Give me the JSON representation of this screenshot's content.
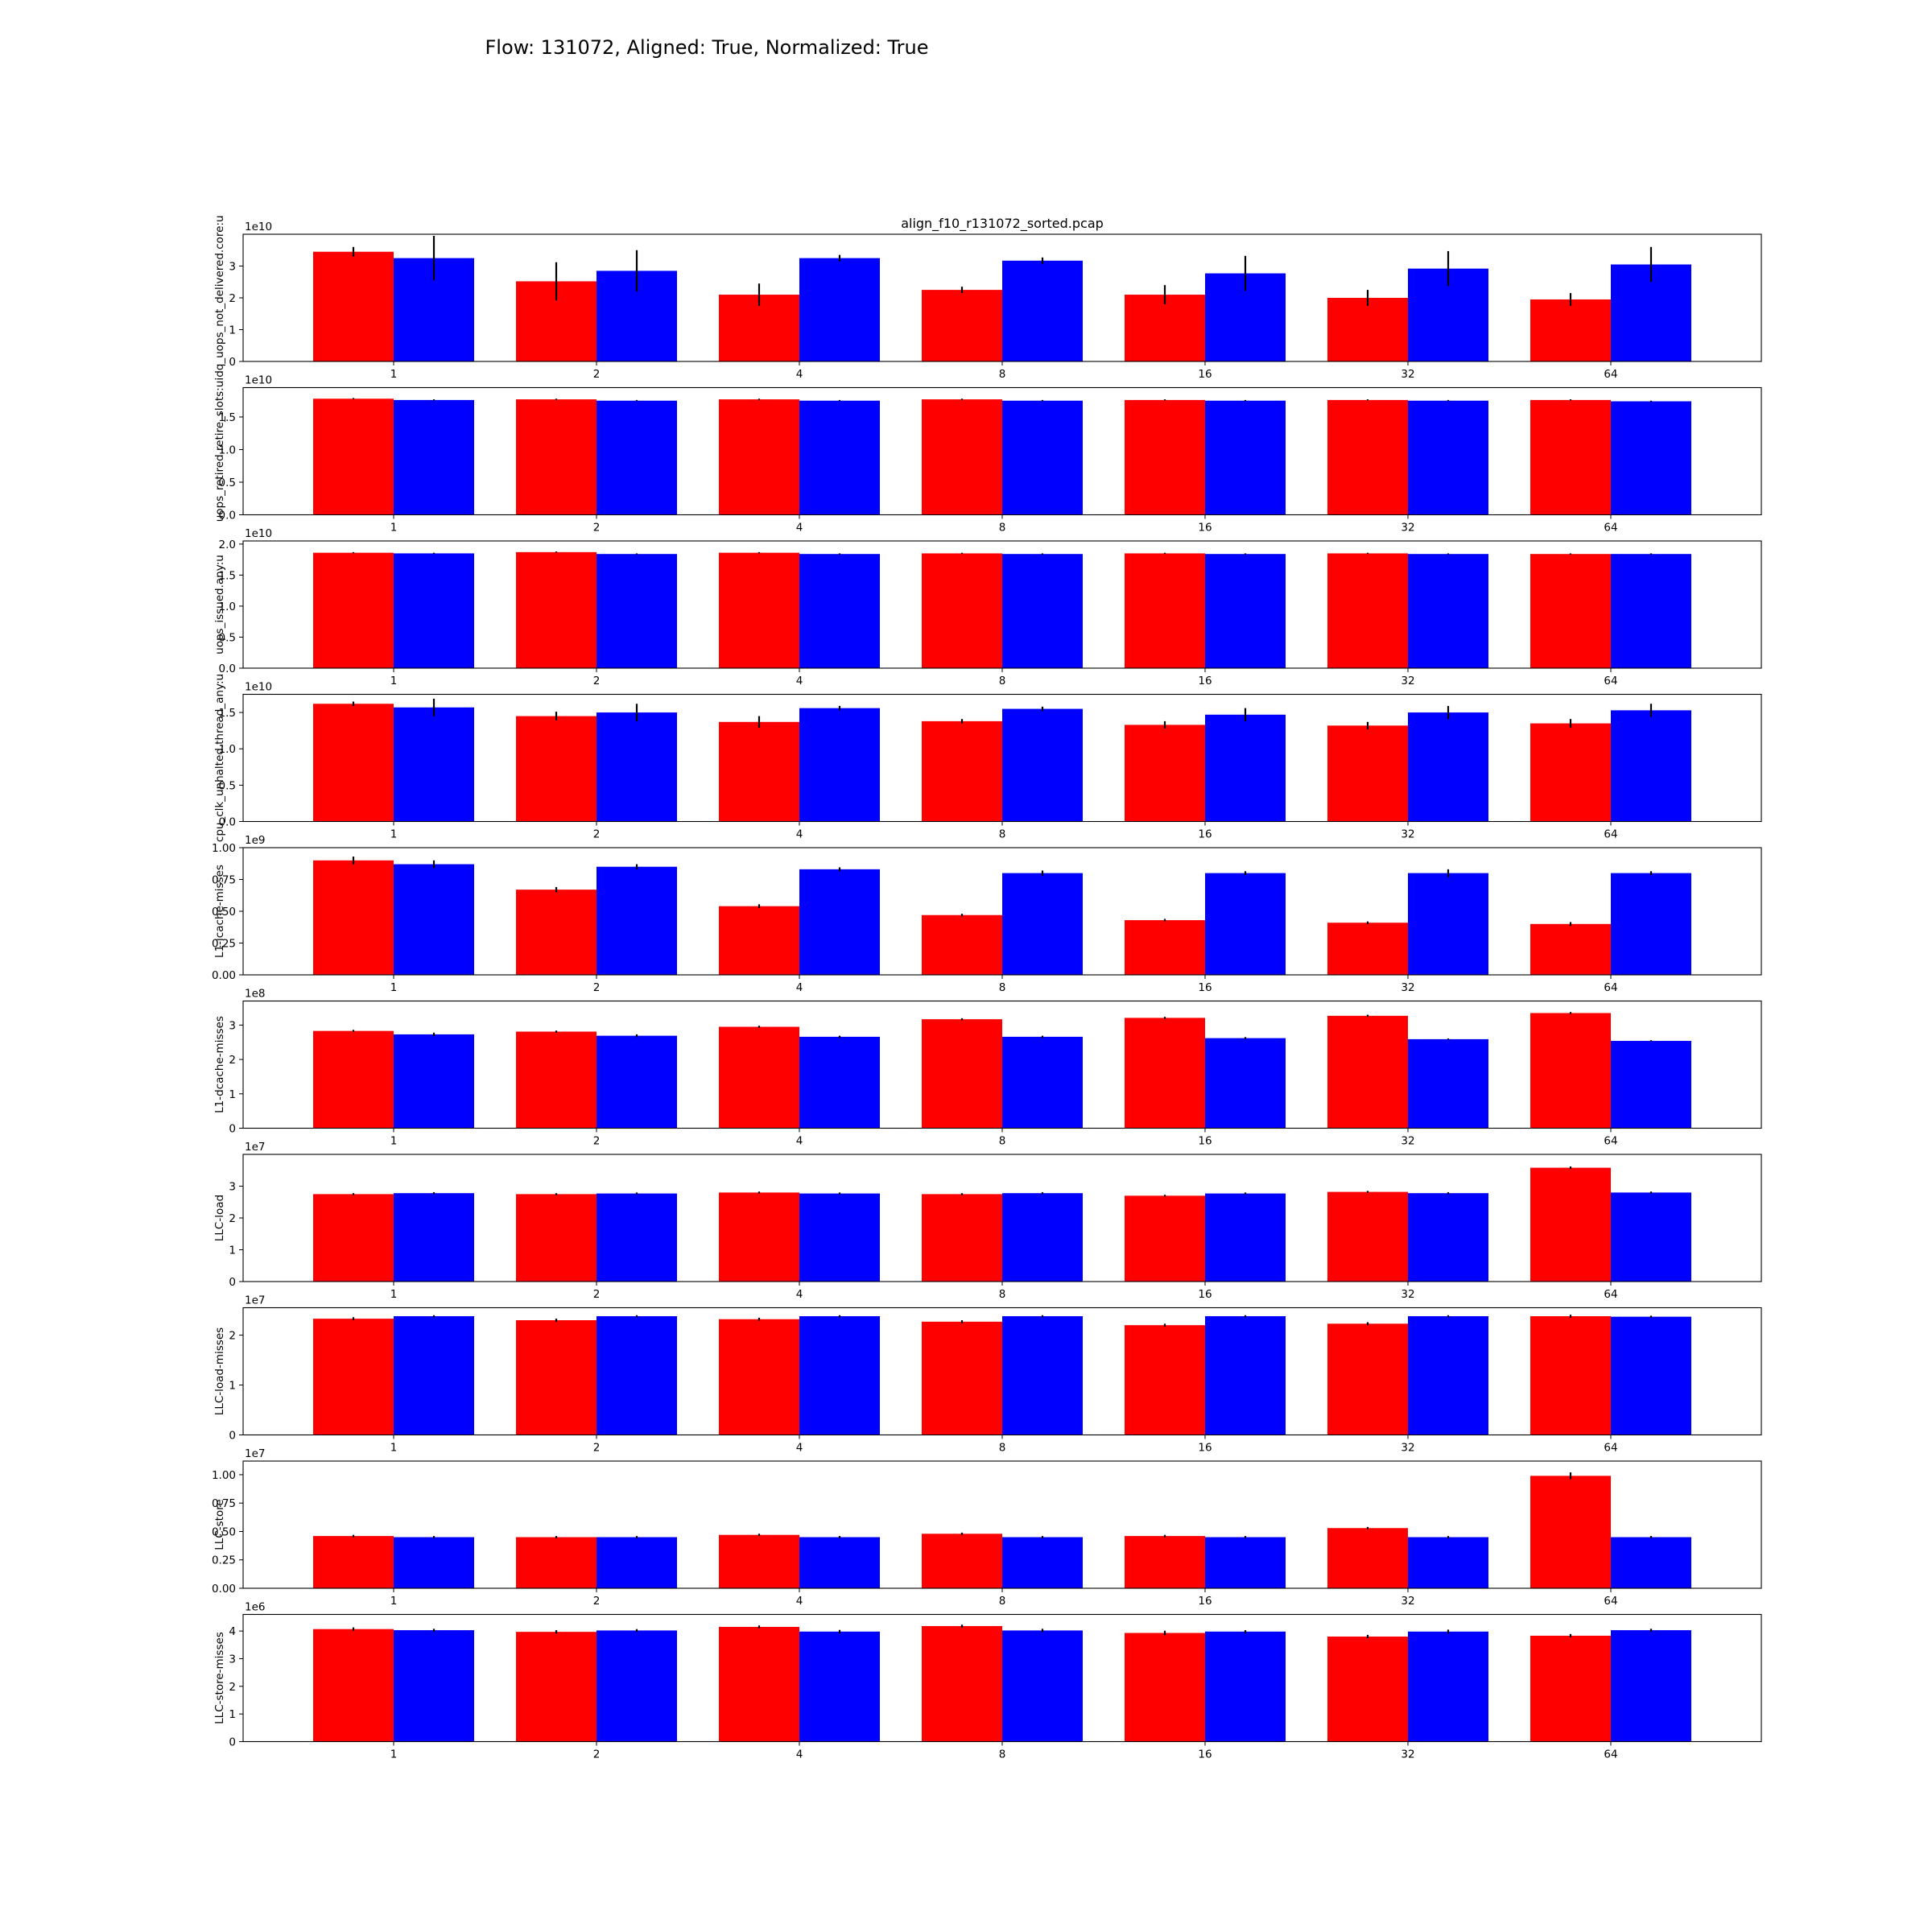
{
  "title": "Flow: 131072, Aligned: True, Normalized: True",
  "chart_data": {
    "type": "bar",
    "title": "Flow: 131072, Aligned: True, Normalized: True",
    "subplot_title": "align_f10_r131072_sorted.pcap",
    "categories": [
      "1",
      "2",
      "4",
      "8",
      "16",
      "32",
      "64"
    ],
    "series_colors": [
      "#ff0000",
      "#0000ff"
    ],
    "legend": "none",
    "grid": false,
    "panels": [
      {
        "ylabel": "idq_uops_not_delivered.core:u",
        "exponent_label": "1e10",
        "ylim": [
          0,
          4.0
        ],
        "yticks": [
          {
            "v": 0,
            "label": "0"
          },
          {
            "v": 1,
            "label": "1"
          },
          {
            "v": 2,
            "label": "2"
          },
          {
            "v": 3,
            "label": "3"
          }
        ],
        "series": [
          {
            "values": [
              3.45,
              2.52,
              2.1,
              2.25,
              2.1,
              2.0,
              1.95
            ],
            "errors": [
              0.15,
              0.6,
              0.35,
              0.1,
              0.3,
              0.25,
              0.2
            ]
          },
          {
            "values": [
              3.25,
              2.85,
              3.25,
              3.17,
              2.77,
              2.92,
              3.05
            ],
            "errors": [
              0.7,
              0.65,
              0.1,
              0.1,
              0.55,
              0.55,
              0.55
            ]
          }
        ]
      },
      {
        "ylabel": "uops_retired.retire_slots:u",
        "exponent_label": "1e10",
        "ylim": [
          0,
          1.95
        ],
        "yticks": [
          {
            "v": 0,
            "label": "0.0"
          },
          {
            "v": 0.5,
            "label": "0.5"
          },
          {
            "v": 1.0,
            "label": "1.0"
          },
          {
            "v": 1.5,
            "label": "1.5"
          }
        ],
        "series": [
          {
            "values": [
              1.78,
              1.77,
              1.77,
              1.77,
              1.76,
              1.76,
              1.76
            ],
            "errors": [
              0.01,
              0.01,
              0.01,
              0.01,
              0.01,
              0.01,
              0.01
            ]
          },
          {
            "values": [
              1.76,
              1.75,
              1.75,
              1.75,
              1.75,
              1.75,
              1.74
            ],
            "errors": [
              0.01,
              0.01,
              0.01,
              0.01,
              0.01,
              0.01,
              0.01
            ]
          }
        ]
      },
      {
        "ylabel": "uops_issued.any:u",
        "exponent_label": "1e10",
        "ylim": [
          0,
          2.05
        ],
        "yticks": [
          {
            "v": 0,
            "label": "0.0"
          },
          {
            "v": 0.5,
            "label": "0.5"
          },
          {
            "v": 1.0,
            "label": "1.0"
          },
          {
            "v": 1.5,
            "label": "1.5"
          },
          {
            "v": 2.0,
            "label": "2.0"
          }
        ],
        "series": [
          {
            "values": [
              1.86,
              1.87,
              1.86,
              1.85,
              1.85,
              1.85,
              1.84
            ],
            "errors": [
              0.01,
              0.01,
              0.01,
              0.01,
              0.01,
              0.01,
              0.01
            ]
          },
          {
            "values": [
              1.85,
              1.84,
              1.84,
              1.84,
              1.84,
              1.84,
              1.84
            ],
            "errors": [
              0.01,
              0.01,
              0.01,
              0.01,
              0.01,
              0.01,
              0.01
            ]
          }
        ]
      },
      {
        "ylabel": "cpu_clk_unhalted.thread_any:u",
        "exponent_label": "1e10",
        "ylim": [
          0,
          1.75
        ],
        "yticks": [
          {
            "v": 0,
            "label": "0.0"
          },
          {
            "v": 0.5,
            "label": "0.5"
          },
          {
            "v": 1.0,
            "label": "1.0"
          },
          {
            "v": 1.5,
            "label": "1.5"
          }
        ],
        "series": [
          {
            "values": [
              1.62,
              1.45,
              1.37,
              1.38,
              1.33,
              1.32,
              1.35
            ],
            "errors": [
              0.03,
              0.06,
              0.08,
              0.03,
              0.05,
              0.05,
              0.06
            ]
          },
          {
            "values": [
              1.57,
              1.5,
              1.56,
              1.55,
              1.47,
              1.5,
              1.53
            ],
            "errors": [
              0.12,
              0.12,
              0.03,
              0.03,
              0.09,
              0.09,
              0.09
            ]
          }
        ]
      },
      {
        "ylabel": "L1-icache-misses",
        "exponent_label": "1e9",
        "ylim": [
          0,
          1.0
        ],
        "yticks": [
          {
            "v": 0,
            "label": "0.00"
          },
          {
            "v": 0.25,
            "label": "0.25"
          },
          {
            "v": 0.5,
            "label": "0.50"
          },
          {
            "v": 0.75,
            "label": "0.75"
          },
          {
            "v": 1.0,
            "label": "1.00"
          }
        ],
        "series": [
          {
            "values": [
              0.9,
              0.67,
              0.54,
              0.47,
              0.43,
              0.41,
              0.4
            ],
            "errors": [
              0.03,
              0.02,
              0.015,
              0.01,
              0.01,
              0.01,
              0.015
            ]
          },
          {
            "values": [
              0.87,
              0.85,
              0.83,
              0.8,
              0.8,
              0.8,
              0.8
            ],
            "errors": [
              0.03,
              0.02,
              0.015,
              0.02,
              0.015,
              0.03,
              0.015
            ]
          }
        ]
      },
      {
        "ylabel": "L1-dcache-misses",
        "exponent_label": "1e8",
        "ylim": [
          0,
          3.7
        ],
        "yticks": [
          {
            "v": 0,
            "label": "0"
          },
          {
            "v": 1,
            "label": "1"
          },
          {
            "v": 2,
            "label": "2"
          },
          {
            "v": 3,
            "label": "3"
          }
        ],
        "series": [
          {
            "values": [
              2.83,
              2.81,
              2.95,
              3.17,
              3.21,
              3.27,
              3.35
            ],
            "errors": [
              0.03,
              0.03,
              0.03,
              0.03,
              0.03,
              0.03,
              0.03
            ]
          },
          {
            "values": [
              2.73,
              2.69,
              2.66,
              2.66,
              2.62,
              2.59,
              2.54
            ],
            "errors": [
              0.05,
              0.04,
              0.03,
              0.03,
              0.03,
              0.02,
              0.02
            ]
          }
        ]
      },
      {
        "ylabel": "LLC-load",
        "exponent_label": "1e7",
        "ylim": [
          0,
          4.0
        ],
        "yticks": [
          {
            "v": 0,
            "label": "0"
          },
          {
            "v": 1,
            "label": "1"
          },
          {
            "v": 2,
            "label": "2"
          },
          {
            "v": 3,
            "label": "3"
          }
        ],
        "series": [
          {
            "values": [
              2.75,
              2.75,
              2.8,
              2.75,
              2.7,
              2.82,
              3.58
            ],
            "errors": [
              0.03,
              0.03,
              0.03,
              0.03,
              0.03,
              0.03,
              0.04
            ]
          },
          {
            "values": [
              2.78,
              2.77,
              2.77,
              2.78,
              2.77,
              2.78,
              2.8
            ],
            "errors": [
              0.03,
              0.03,
              0.03,
              0.03,
              0.03,
              0.03,
              0.03
            ]
          }
        ]
      },
      {
        "ylabel": "LLC-load-misses",
        "exponent_label": "1e7",
        "ylim": [
          0,
          2.55
        ],
        "yticks": [
          {
            "v": 0,
            "label": "0"
          },
          {
            "v": 1,
            "label": "1"
          },
          {
            "v": 2,
            "label": "2"
          }
        ],
        "series": [
          {
            "values": [
              2.33,
              2.3,
              2.32,
              2.27,
              2.2,
              2.23,
              2.38
            ],
            "errors": [
              0.03,
              0.03,
              0.03,
              0.03,
              0.03,
              0.03,
              0.03
            ]
          },
          {
            "values": [
              2.38,
              2.38,
              2.38,
              2.38,
              2.38,
              2.38,
              2.37
            ],
            "errors": [
              0.02,
              0.02,
              0.02,
              0.02,
              0.02,
              0.02,
              0.02
            ]
          }
        ]
      },
      {
        "ylabel": "LLC-store",
        "exponent_label": "1e7",
        "ylim": [
          0,
          1.12
        ],
        "yticks": [
          {
            "v": 0,
            "label": "0.00"
          },
          {
            "v": 0.25,
            "label": "0.25"
          },
          {
            "v": 0.5,
            "label": "0.50"
          },
          {
            "v": 0.75,
            "label": "0.75"
          },
          {
            "v": 1.0,
            "label": "1.00"
          }
        ],
        "series": [
          {
            "values": [
              0.46,
              0.45,
              0.47,
              0.48,
              0.46,
              0.53,
              0.99
            ],
            "errors": [
              0.01,
              0.01,
              0.01,
              0.01,
              0.01,
              0.01,
              0.03
            ]
          },
          {
            "values": [
              0.45,
              0.45,
              0.45,
              0.45,
              0.45,
              0.45,
              0.45
            ],
            "errors": [
              0.01,
              0.01,
              0.01,
              0.01,
              0.01,
              0.01,
              0.01
            ]
          }
        ]
      },
      {
        "ylabel": "LLC-store-misses",
        "exponent_label": "1e6",
        "ylim": [
          0,
          4.6
        ],
        "yticks": [
          {
            "v": 0,
            "label": "0"
          },
          {
            "v": 1,
            "label": "1"
          },
          {
            "v": 2,
            "label": "2"
          },
          {
            "v": 3,
            "label": "3"
          },
          {
            "v": 4,
            "label": "4"
          }
        ],
        "series": [
          {
            "values": [
              4.07,
              3.97,
              4.15,
              4.18,
              3.93,
              3.8,
              3.83
            ],
            "errors": [
              0.06,
              0.06,
              0.05,
              0.05,
              0.08,
              0.06,
              0.06
            ]
          },
          {
            "values": [
              4.03,
              4.02,
              3.98,
              4.02,
              3.98,
              3.98,
              4.03
            ],
            "errors": [
              0.05,
              0.05,
              0.06,
              0.06,
              0.05,
              0.07,
              0.05
            ]
          }
        ]
      }
    ]
  }
}
